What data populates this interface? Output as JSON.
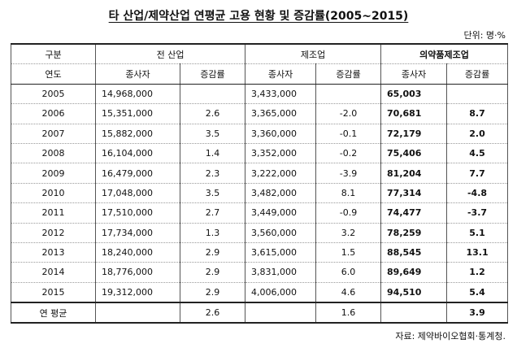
{
  "title": "타 산업/제약산업 연평균 고용 현황 및 증감률(2005~2015)",
  "unit": "단위: 명·%",
  "header": {
    "category": "구분",
    "year": "연도",
    "group_all": "전 산업",
    "group_mfg": "제조업",
    "group_pharma": "의약품제조업",
    "employees": "종사자",
    "change_rate": "증감률"
  },
  "rows": [
    {
      "year": "2005",
      "all_emp": "14,968,000",
      "all_rate": "",
      "mfg_emp": "3,433,000",
      "mfg_rate": "",
      "ph_emp": "65,003",
      "ph_rate": ""
    },
    {
      "year": "2006",
      "all_emp": "15,351,000",
      "all_rate": "2.6",
      "mfg_emp": "3,365,000",
      "mfg_rate": "-2.0",
      "ph_emp": "70,681",
      "ph_rate": "8.7"
    },
    {
      "year": "2007",
      "all_emp": "15,882,000",
      "all_rate": "3.5",
      "mfg_emp": "3,360,000",
      "mfg_rate": "-0.1",
      "ph_emp": "72,179",
      "ph_rate": "2.0"
    },
    {
      "year": "2008",
      "all_emp": "16,104,000",
      "all_rate": "1.4",
      "mfg_emp": "3,352,000",
      "mfg_rate": "-0.2",
      "ph_emp": "75,406",
      "ph_rate": "4.5"
    },
    {
      "year": "2009",
      "all_emp": "16,479,000",
      "all_rate": "2.3",
      "mfg_emp": "3,222,000",
      "mfg_rate": "-3.9",
      "ph_emp": "81,204",
      "ph_rate": "7.7"
    },
    {
      "year": "2010",
      "all_emp": "17,048,000",
      "all_rate": "3.5",
      "mfg_emp": "3,482,000",
      "mfg_rate": "8.1",
      "ph_emp": "77,314",
      "ph_rate": "-4.8"
    },
    {
      "year": "2011",
      "all_emp": "17,510,000",
      "all_rate": "2.7",
      "mfg_emp": "3,449,000",
      "mfg_rate": "-0.9",
      "ph_emp": "74,477",
      "ph_rate": "-3.7"
    },
    {
      "year": "2012",
      "all_emp": "17,734,000",
      "all_rate": "1.3",
      "mfg_emp": "3,560,000",
      "mfg_rate": "3.2",
      "ph_emp": "78,259",
      "ph_rate": "5.1"
    },
    {
      "year": "2013",
      "all_emp": "18,240,000",
      "all_rate": "2.9",
      "mfg_emp": "3,615,000",
      "mfg_rate": "1.5",
      "ph_emp": "88,545",
      "ph_rate": "13.1"
    },
    {
      "year": "2014",
      "all_emp": "18,776,000",
      "all_rate": "2.9",
      "mfg_emp": "3,831,000",
      "mfg_rate": "6.0",
      "ph_emp": "89,649",
      "ph_rate": "1.2"
    },
    {
      "year": "2015",
      "all_emp": "19,312,000",
      "all_rate": "2.9",
      "mfg_emp": "4,006,000",
      "mfg_rate": "4.6",
      "ph_emp": "94,510",
      "ph_rate": "5.4"
    }
  ],
  "average": {
    "label": "연 평균",
    "all_rate": "2.6",
    "mfg_rate": "1.6",
    "ph_rate": "3.9"
  },
  "source": "자료: 제약바이오협회·통계청."
}
